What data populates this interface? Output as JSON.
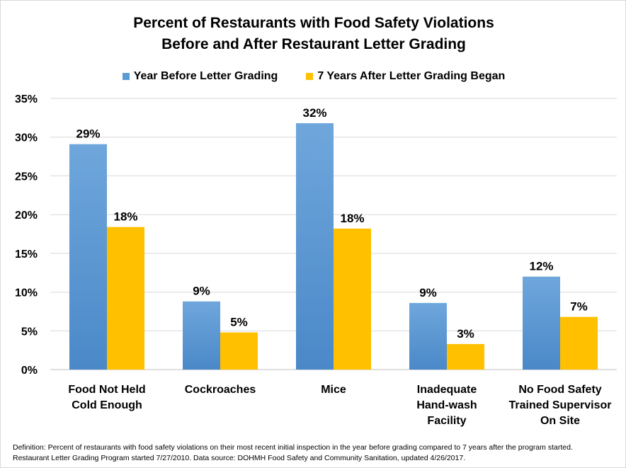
{
  "chart_data": {
    "type": "bar",
    "title": [
      "Percent of Restaurants with Food Safety Violations",
      "Before and After Restaurant Letter Grading"
    ],
    "categories": [
      [
        "Food Not Held",
        "Cold Enough"
      ],
      [
        "Cockroaches"
      ],
      [
        "Mice"
      ],
      [
        "Inadequate",
        "Hand-wash",
        "Facility"
      ],
      [
        "No Food Safety",
        "Trained Supervisor",
        "On Site"
      ]
    ],
    "series": [
      {
        "name": "Year Before Letter Grading",
        "color": "#5b9bd5",
        "values": [
          29.1,
          8.8,
          31.8,
          8.6,
          12.0
        ],
        "labels": [
          "29%",
          "9%",
          "32%",
          "9%",
          "12%"
        ]
      },
      {
        "name": "7 Years After Letter Grading Began",
        "color": "#ffc000",
        "values": [
          18.4,
          4.8,
          18.2,
          3.3,
          6.8
        ],
        "labels": [
          "18%",
          "5%",
          "18%",
          "3%",
          "7%"
        ]
      }
    ],
    "ylim": [
      0,
      35
    ],
    "yticks": [
      "0%",
      "5%",
      "10%",
      "15%",
      "20%",
      "25%",
      "30%",
      "35%"
    ],
    "grid": true,
    "legend": "top"
  },
  "footnote": [
    "Definition:  Percent of restaurants with food safety violations on their most recent initial inspection in the year before grading compared to 7 years after the program started.",
    "Restaurant Letter Grading Program started 7/27/2010. Data source:  DOHMH Food Safety and Community Sanitation, updated 4/26/2017."
  ]
}
